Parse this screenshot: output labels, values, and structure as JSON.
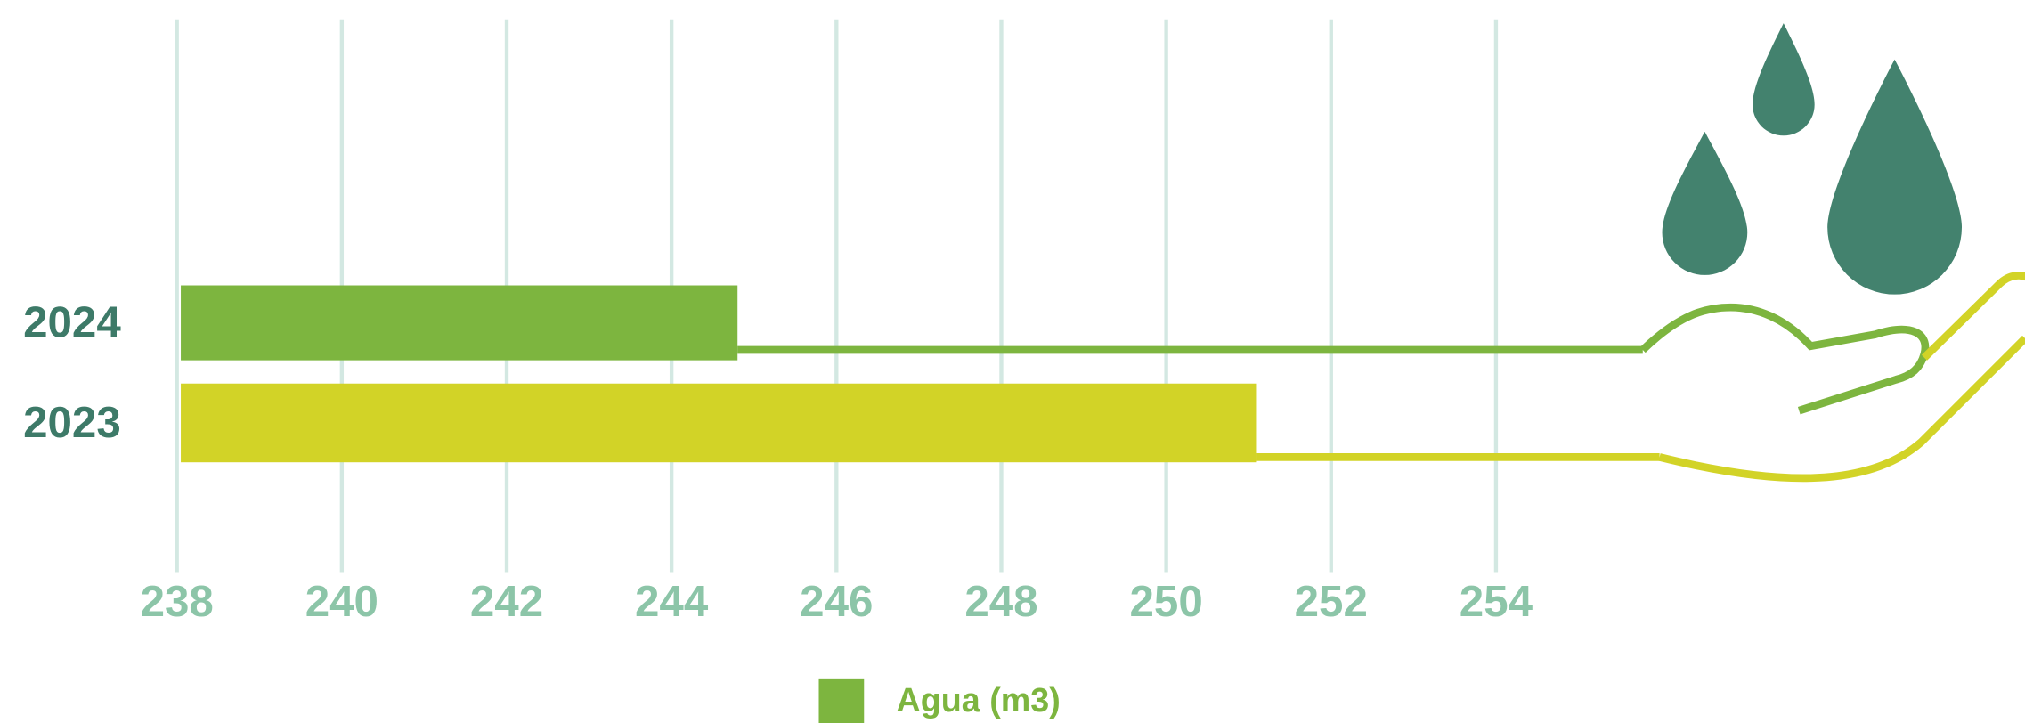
{
  "chart_data": {
    "type": "bar",
    "orientation": "horizontal",
    "categories": [
      "2024",
      "2023"
    ],
    "series": [
      {
        "name": "Agua (m3)",
        "color": "#7db53f",
        "values": [
          244.8,
          251.1
        ]
      }
    ],
    "bar_colors": [
      "#7db53f",
      "#d2d327"
    ],
    "xlim": [
      238,
      256
    ],
    "xticks": [
      238,
      240,
      242,
      244,
      246,
      248,
      250,
      252,
      254
    ],
    "grid": true,
    "legend": "bottom"
  }
}
